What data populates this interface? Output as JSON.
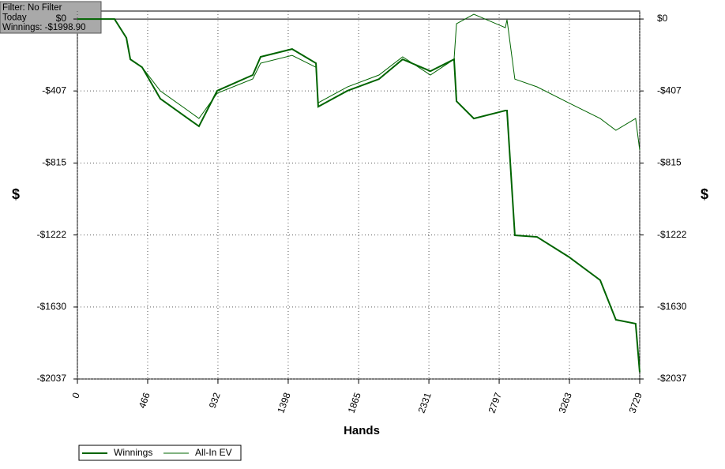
{
  "chart_data": {
    "type": "line",
    "filter_box": [
      "Filter: No Filter",
      "Today",
      "Winnings: -$1998.90"
    ],
    "xlabel": "Hands",
    "ylabel": "$",
    "y2label": "$",
    "x": [
      0,
      246,
      325,
      351,
      429,
      550,
      733,
      806,
      927,
      1163,
      1215,
      1424,
      1582,
      1597,
      1791,
      2000,
      2157,
      2341,
      2498,
      2514,
      2629,
      2838,
      2849,
      2901,
      3048,
      3257,
      3467,
      3571,
      3702,
      3729
    ],
    "series": [
      {
        "name": "Winnings",
        "color": "#006400",
        "width": 2,
        "values": [
          0,
          0,
          -107,
          -228,
          -273,
          -451,
          -563,
          -607,
          -406,
          -317,
          -214,
          -170,
          -250,
          -496,
          -406,
          -340,
          -228,
          -295,
          -228,
          -465,
          -563,
          -518,
          -518,
          -1224,
          -1233,
          -1345,
          -1478,
          -1702,
          -1724,
          -1998.9
        ]
      },
      {
        "name": "All-In EV",
        "color": "#006400",
        "width": 1,
        "values": [
          0,
          0,
          -107,
          -228,
          -273,
          -407,
          -518,
          -563,
          -420,
          -339,
          -250,
          -206,
          -273,
          -474,
          -384,
          -317,
          -214,
          -317,
          -228,
          -27,
          27,
          -49,
          -4,
          -340,
          -384,
          -474,
          -563,
          -630,
          -563,
          -742
        ]
      }
    ],
    "xlim": [
      0,
      3729
    ],
    "xticks": [
      0,
      466,
      932,
      1398,
      1865,
      2331,
      2797,
      3263,
      3729
    ],
    "ylim": [
      -2037,
      45
    ],
    "yticks": [
      {
        "value": 0,
        "label": "$0"
      },
      {
        "value": -407,
        "label": "-$407"
      },
      {
        "value": -815,
        "label": "-$815"
      },
      {
        "value": -1222,
        "label": "-$1222"
      },
      {
        "value": -1630,
        "label": "-$1630"
      },
      {
        "value": -2037,
        "label": "-$2037"
      }
    ],
    "grid": true
  }
}
